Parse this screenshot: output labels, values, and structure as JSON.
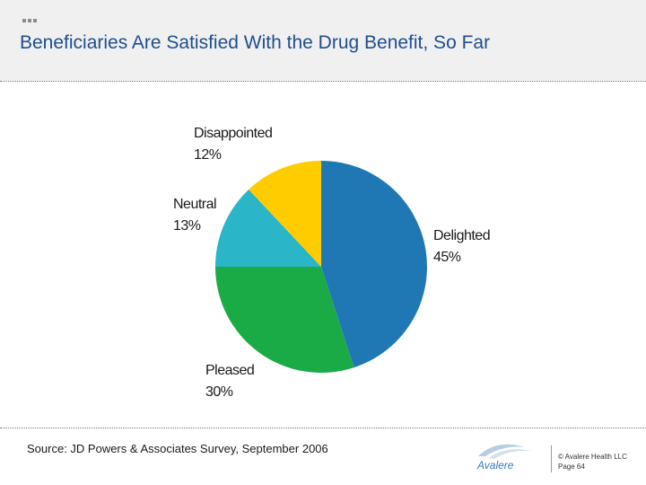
{
  "slide": {
    "title": "Beneficiaries Are Satisfied With the Drug Benefit, So Far"
  },
  "chart_data": {
    "type": "pie",
    "title": "",
    "slices": [
      {
        "label": "Delighted",
        "value": 45,
        "value_label": "45%",
        "color": "#1f78b4"
      },
      {
        "label": "Pleased",
        "value": 30,
        "value_label": "30%",
        "color": "#1aab47"
      },
      {
        "label": "Neutral",
        "value": 13,
        "value_label": "13%",
        "color": "#2bb5c8"
      },
      {
        "label": "Disappointed",
        "value": 12,
        "value_label": "12%",
        "color": "#ffcc00"
      }
    ],
    "start_angle_deg": 0,
    "direction": "clockwise",
    "legend": "none"
  },
  "footer": {
    "source": "Source:  JD Powers & Associates Survey, September 2006",
    "logo_text": "Avalere",
    "copyright": "© Avalere Health LLC",
    "page": "Page 64"
  },
  "colors": {
    "title": "#1f4e8c",
    "header_band": "#f0f0f0",
    "logo": "#3a7bbf"
  }
}
